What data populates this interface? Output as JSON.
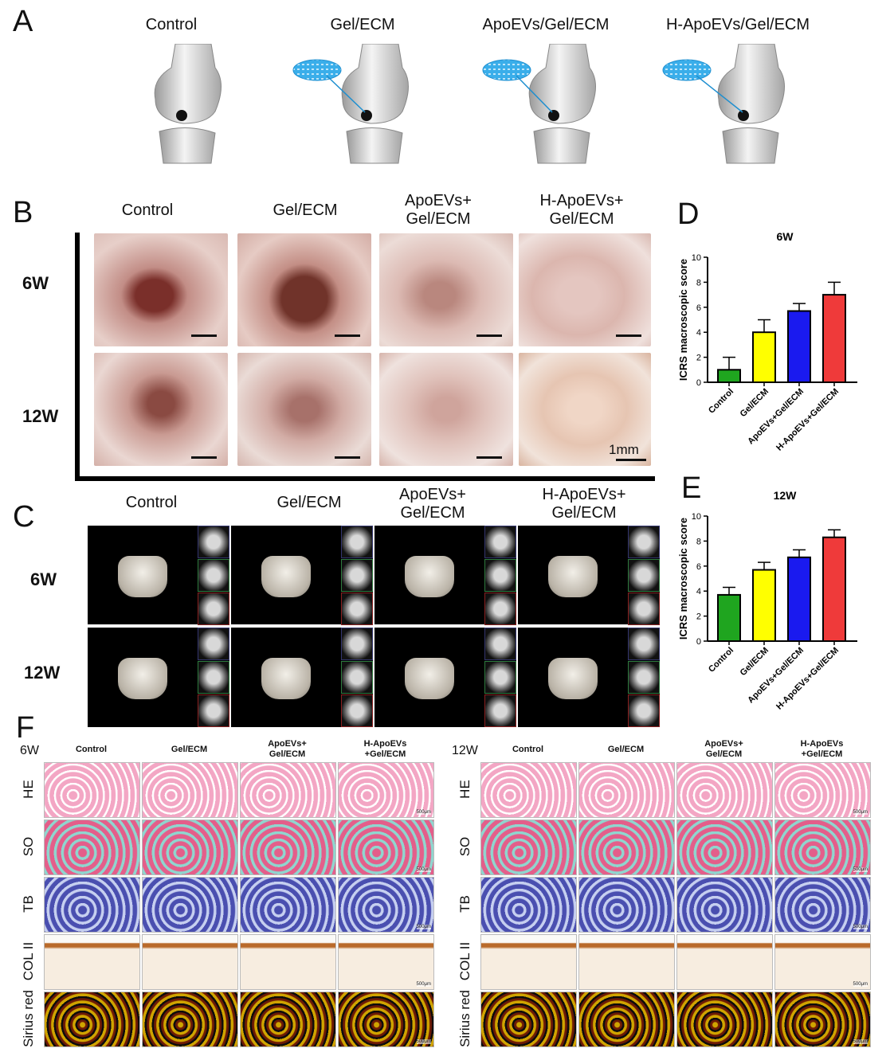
{
  "panels": {
    "A": "A",
    "B": "B",
    "C": "C",
    "D": "D",
    "E": "E",
    "F": "F"
  },
  "panelA": {
    "titles": [
      "Control",
      "Gel/ECM",
      "ApoEVs/Gel/ECM",
      "H-ApoEVs/Gel/ECM"
    ]
  },
  "panelB": {
    "titles": [
      "Control",
      "Gel/ECM",
      "ApoEVs+\nGel/ECM",
      "H-ApoEVs+\nGel/ECM"
    ],
    "rows": [
      "6W",
      "12W"
    ],
    "scale": "1mm"
  },
  "panelC": {
    "titles": [
      "Control",
      "Gel/ECM",
      "ApoEVs+\nGel/ECM",
      "H-ApoEVs+\nGel/ECM"
    ],
    "rows": [
      "6W",
      "12W"
    ]
  },
  "panelF": {
    "left_time": "6W",
    "right_time": "12W",
    "cols": [
      "Control",
      "Gel/ECM",
      "ApoEVs+\nGel/ECM",
      "H-ApoEVs\n+Gel/ECM"
    ],
    "stains": [
      "HE",
      "SO",
      "TB",
      "COL II",
      "Sirius red"
    ],
    "scale": "500μm"
  },
  "colors": {
    "control": "#1fa51f",
    "gel": "#ffff00",
    "apo": "#1a1aef",
    "hapo": "#ef3a3a",
    "ecm_blue": "#29a8e8"
  },
  "chart_data": [
    {
      "type": "bar",
      "title": "6W",
      "ylabel": "ICRS macroscopic score",
      "ylim": [
        0,
        10
      ],
      "yticks": [
        "0",
        "2",
        "4",
        "6",
        "8",
        "10"
      ],
      "categories": [
        "Control",
        "Gel/ECM",
        "ApoEVs+Gel/ECM",
        "H-ApoEVs+Gel/ECM"
      ],
      "values": [
        1,
        4,
        5.7,
        7
      ],
      "errors": [
        1,
        1,
        0.6,
        1
      ]
    },
    {
      "type": "bar",
      "title": "12W",
      "ylabel": "ICRS macroscopic score",
      "ylim": [
        0,
        10
      ],
      "yticks": [
        "0",
        "2",
        "4",
        "6",
        "8",
        "10"
      ],
      "categories": [
        "Control",
        "Gel/ECM",
        "ApoEVs+Gel/ECM",
        "H-ApoEVs+Gel/ECM"
      ],
      "values": [
        3.7,
        5.7,
        6.7,
        8.3
      ],
      "errors": [
        0.6,
        0.6,
        0.6,
        0.6
      ]
    }
  ]
}
